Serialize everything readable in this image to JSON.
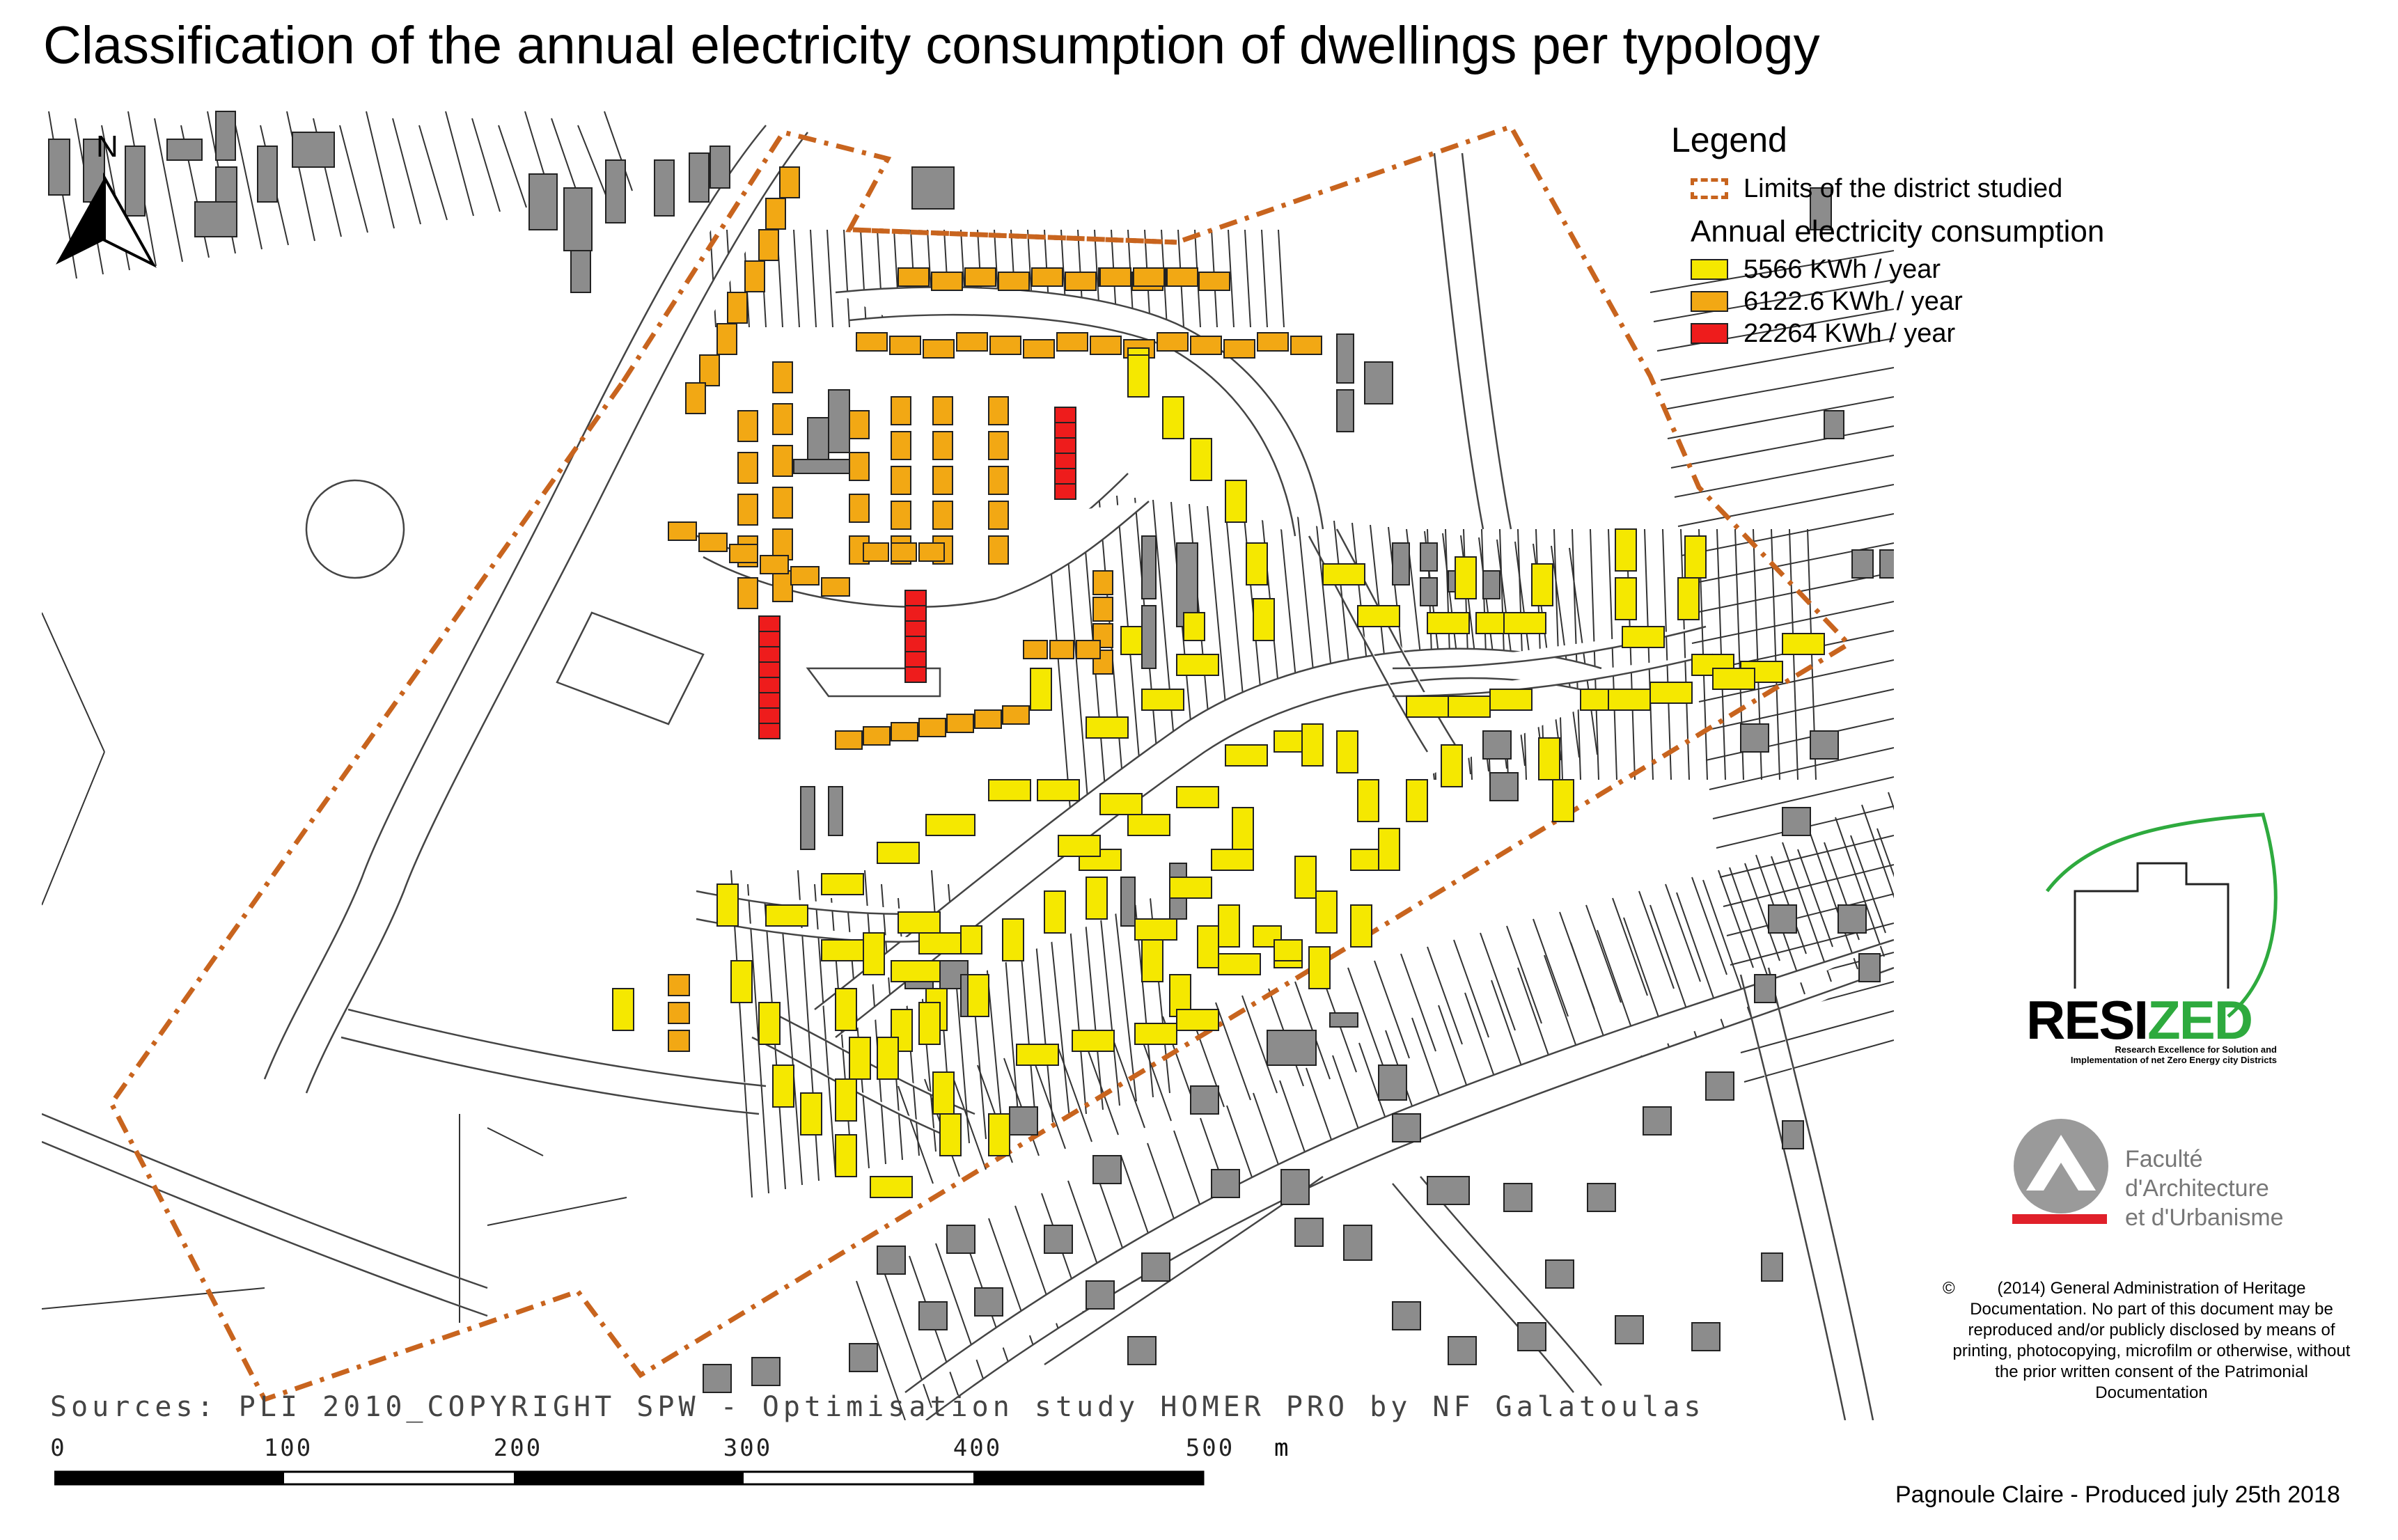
{
  "title": "Classification of the annual electricity consumption of dwellings per typology",
  "north_arrow": {
    "label": "N"
  },
  "legend": {
    "title": "Legend",
    "boundary_label": "Limits of the district studied",
    "section_title": "Annual electricity consumption",
    "classes": [
      {
        "label": "5566 KWh / year",
        "color": "#f5e800"
      },
      {
        "label": "6122.6 KWh / year",
        "color": "#f2a814"
      },
      {
        "label": "22264 KWh / year",
        "color": "#ee1c1c"
      }
    ],
    "boundary_color": "#c8641e",
    "other_building_color": "#8c8c8c"
  },
  "sources": "Sources: PLI 2010_COPYRIGHT SPW - Optimisation study HOMER PRO by NF Galatoulas",
  "scale_bar": {
    "ticks": [
      "0",
      "100",
      "200",
      "300",
      "400",
      "500"
    ],
    "unit": "m"
  },
  "produced": "Pagnoule Claire - Produced july 25th 2018",
  "copyright": {
    "symbol": "©",
    "text": "(2014) General Administration of Heritage Documentation. No part of this document may be reproduced and/or publicly disclosed by means of printing, photocopying, microfilm or otherwise, without the prior written consent of the Patrimonial Documentation"
  },
  "resized_logo": {
    "word_black": "RESI",
    "word_green": "ZED",
    "tagline": "Research Excellence for Solution and Implementation of net Zero Energy city Districts"
  },
  "faculty_logo": {
    "line1": "Faculté",
    "line2": "d'Architecture",
    "line3": "et d'Urbanisme"
  }
}
